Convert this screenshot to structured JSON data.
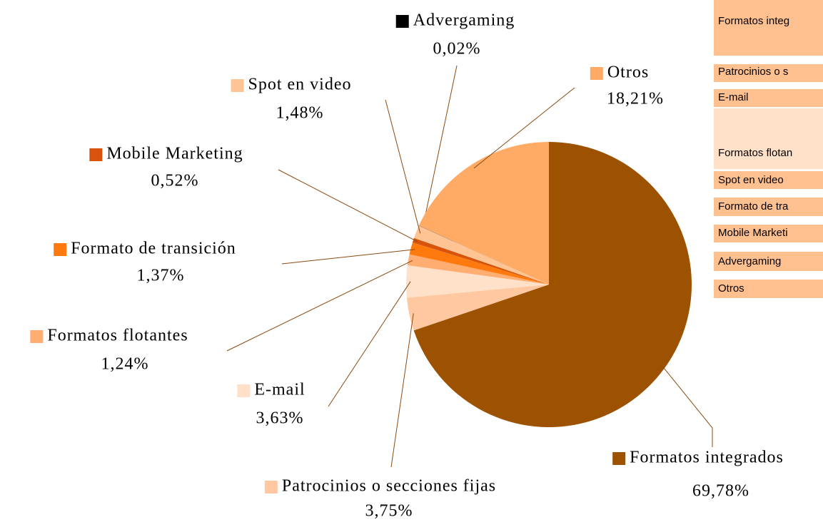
{
  "chart_data": {
    "type": "pie",
    "categories": [
      "Formatos integrados",
      "Patrocinios o secciones fijas",
      "E-mail",
      "Formatos flotantes",
      "Formato de transición",
      "Mobile Marketing",
      "Spot en video",
      "Advergaming",
      "Otros"
    ],
    "values": [
      69.78,
      3.75,
      3.63,
      1.24,
      1.37,
      0.52,
      1.48,
      0.02,
      18.21
    ],
    "value_labels": [
      "69,78%",
      "3,75%",
      "3,63%",
      "1,24%",
      "1,37%",
      "0,52%",
      "1,48%",
      "0,02%",
      "18,21%"
    ],
    "colors": [
      "#9c5200",
      "#ffc8a0",
      "#ffe0c8",
      "#ffad70",
      "#ff7a0e",
      "#d8540c",
      "#ffc494",
      "#000000",
      "#ffab66"
    ]
  },
  "table": {
    "rows": [
      "Formatos integ",
      "Patrocinios o s",
      "E-mail",
      "Formatos flotan",
      "Spot en video",
      "Formato de tra",
      "Mobile Marketi",
      "Advergaming",
      "Otros"
    ]
  }
}
